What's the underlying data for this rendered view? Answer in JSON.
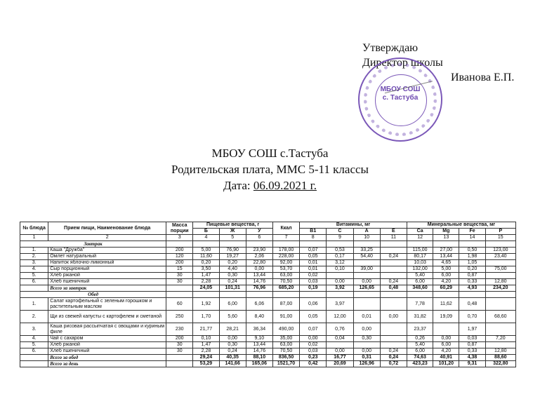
{
  "approval": {
    "line1": "Утверждаю",
    "line2": "Директор школы",
    "name": "Иванова Е.П."
  },
  "stamp": {
    "line1": "МБОУ СОШ",
    "line2": "с. Тастуба",
    "color": "#7b58b8"
  },
  "header": {
    "school": "МБОУ СОШ с.Тастуба",
    "subtitle": "Родительская плата, ММС 5-11 классы",
    "date_label": "Дата: ",
    "date": "06.09.2021 г."
  },
  "table": {
    "headers": {
      "num": "№ блюда",
      "name": "Прием пищи, Наименование блюда",
      "mass": "Масса порции",
      "nutrients": "Пищевые вещества, г",
      "kcal": "Ккал",
      "vitamins": "Витамины, мг",
      "minerals": "Минеральные вещества, мг",
      "sub": [
        "Б",
        "Ж",
        "У",
        "B1",
        "C",
        "A",
        "E",
        "Ca",
        "Mg",
        "Fe",
        "P"
      ],
      "numbers": [
        "1",
        "2",
        "3",
        "4",
        "5",
        "6",
        "7",
        "8",
        "9",
        "10",
        "11",
        "12",
        "13",
        "14",
        "15"
      ]
    },
    "sections": [
      {
        "title": "Завтрак",
        "rows": [
          [
            "1.",
            "Каша \"Дружба\"",
            "200",
            "5,00",
            "76,90",
            "23,90",
            "178,00",
            "0,07",
            "0,53",
            "33,25",
            "",
            "115,00",
            "27,00",
            "0,50",
            "123,00"
          ],
          [
            "2.",
            "Омлет натуральный",
            "120",
            "11,60",
            "19,27",
            "2,06",
            "228,00",
            "0,05",
            "0,17",
            "54,40",
            "0,24",
            "80,17",
            "13,44",
            "1,98",
            "23,40"
          ],
          [
            "3.",
            "Напиток яблочно-лимонный",
            "200",
            "0,20",
            "0,20",
            "22,80",
            "92,00",
            "0,01",
            "3,12",
            "",
            "",
            "10,03",
            "4,65",
            "1,05",
            ""
          ],
          [
            "4.",
            "Сыр порционный",
            "15",
            "3,50",
            "4,40",
            "0,00",
            "53,70",
            "0,01",
            "0,10",
            "39,00",
            "",
            "132,00",
            "5,00",
            "0,20",
            "75,00"
          ],
          [
            "5.",
            "Хлеб ржаной",
            "30",
            "1,47",
            "0,30",
            "13,44",
            "63,00",
            "0,02",
            "",
            "",
            "",
            "5,40",
            "6,00",
            "0,87",
            ""
          ],
          [
            "6.",
            "Хлеб пшеничный",
            "30",
            "2,28",
            "0,24",
            "14,76",
            "70,50",
            "0,03",
            "0,00",
            "0,00",
            "0,24",
            "6,00",
            "4,20",
            "0,33",
            "12,80"
          ]
        ],
        "total": [
          "",
          "Всего за завтрак",
          "",
          "24,05",
          "101,31",
          "76,96",
          "685,20",
          "0,19",
          "3,92",
          "126,65",
          "0,48",
          "348,60",
          "60,29",
          "4,93",
          "234,20"
        ]
      },
      {
        "title": "Обед",
        "rows": [
          [
            "1.",
            "Салат картофельный с зеленым горошком и растительным маслом",
            "60",
            "1,92",
            "6,00",
            "6,06",
            "87,00",
            "0,06",
            "3,97",
            "",
            "",
            "7,78",
            "11,62",
            "0,48",
            ""
          ],
          [
            "2.",
            "Щи из свежей капусты с картофелем и сметаной",
            "250",
            "1,70",
            "5,60",
            "8,40",
            "91,00",
            "0,05",
            "12,00",
            "0,01",
            "0,00",
            "31,82",
            "19,09",
            "0,70",
            "68,60"
          ],
          [
            "3.",
            "Каша рисовая рассыпчатая с овощами и куриным филе",
            "230",
            "21,77",
            "28,21",
            "36,34",
            "490,00",
            "0,07",
            "0,76",
            "0,00",
            "",
            "23,37",
            "",
            "1,97",
            ""
          ],
          [
            "4.",
            "Чай с сахаром",
            "200",
            "0,10",
            "0,00",
            "9,10",
            "35,00",
            "0,00",
            "0,04",
            "0,30",
            "",
            "0,26",
            "0,00",
            "0,03",
            "7,20"
          ],
          [
            "5.",
            "Хлеб ржаной",
            "30",
            "1,47",
            "0,30",
            "13,44",
            "63,00",
            "0,02",
            "",
            "",
            "",
            "5,40",
            "6,00",
            "0,87",
            ""
          ],
          [
            "6.",
            "Хлеб пшеничный",
            "30",
            "2,28",
            "0,24",
            "14,76",
            "70,50",
            "0,03",
            "0,00",
            "0,00",
            "0,24",
            "6,00",
            "4,20",
            "0,33",
            "12,80"
          ]
        ],
        "total": [
          "",
          "Всего за обед",
          "",
          "29,24",
          "40,35",
          "88,10",
          "836,50",
          "0,23",
          "16,77",
          "0,31",
          "0,24",
          "74,63",
          "40,91",
          "4,38",
          "88,60"
        ]
      }
    ],
    "day_total": [
      "",
      "Всего за день",
      "",
      "53,29",
      "141,66",
      "165,06",
      "1521,70",
      "0,42",
      "20,69",
      "126,96",
      "0,72",
      "423,23",
      "101,20",
      "9,31",
      "322,80"
    ]
  }
}
